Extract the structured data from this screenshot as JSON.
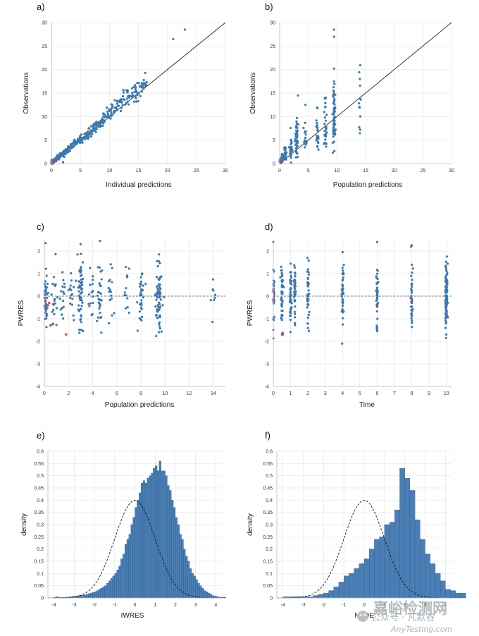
{
  "watermark": {
    "site_cn": "嘉峪检测网",
    "site_en": "AnyTesting.com",
    "wechat_cn": "公众号 · 凡默谷",
    "color": "#9aa3aa"
  },
  "colors": {
    "point": "#3a78b0",
    "bql": "#e02b3c",
    "bar": "#4a7fb5",
    "bar_edge": "#1f4f7f",
    "grid": "#e6e6e6"
  },
  "chart_data": [
    {
      "panel": "a)",
      "type": "scatter",
      "xlabel": "Individual predictions",
      "ylabel": "Observations",
      "xlim": [
        0,
        30
      ],
      "ylim": [
        0,
        30
      ],
      "xticks": [
        "0",
        "5",
        "10",
        "15",
        "20",
        "25",
        "30"
      ],
      "yticks": [
        "0",
        "5",
        "10",
        "15",
        "20",
        "25",
        "30"
      ],
      "identity_line": true,
      "points": "observed vs individual prediction, ~400 obs clustered on identity; outliers at (21,26.5),(23,28.5)",
      "bql_points": [
        [
          0.3,
          0.2
        ],
        [
          0.5,
          0.4
        ],
        [
          2,
          0.3
        ]
      ]
    },
    {
      "panel": "b)",
      "type": "scatter",
      "xlabel": "Population predictions",
      "ylabel": "Observations",
      "xlim": [
        0,
        30
      ],
      "ylim": [
        0,
        30
      ],
      "xticks": [
        "0",
        "5",
        "10",
        "15",
        "20",
        "25",
        "30"
      ],
      "yticks": [
        "0",
        "5",
        "10",
        "15",
        "20",
        "25",
        "30"
      ],
      "identity_line": true,
      "points": "vertical stripes at population predictions 0,0.5,1,2,3,4.5,6.5,8,9.5,14",
      "bql_points": [
        [
          0.2,
          0.2
        ],
        [
          0.4,
          0.3
        ],
        [
          2,
          0.2
        ]
      ]
    },
    {
      "panel": "c)",
      "type": "scatter",
      "xlabel": "Population predictions",
      "ylabel": "PWRES",
      "xlim": [
        0,
        15
      ],
      "ylim": [
        -4,
        2.5
      ],
      "xticks": [
        "0",
        "2",
        "4",
        "6",
        "8",
        "10",
        "12",
        "14"
      ],
      "yticks": [
        "-4",
        "-3",
        "-2",
        "-1",
        "0",
        "1",
        "2"
      ],
      "reference_line_y": 0,
      "bql_points": [
        [
          0.1,
          -0.2
        ],
        [
          0.3,
          -0.4
        ],
        [
          0.4,
          -0.3
        ],
        [
          0.5,
          -1.3
        ],
        [
          1.8,
          -1.7
        ],
        [
          0.2,
          -0.8
        ]
      ]
    },
    {
      "panel": "d)",
      "type": "scatter",
      "xlabel": "Time",
      "ylabel": "PWRES",
      "xlim": [
        0,
        10.3
      ],
      "ylim": [
        -4,
        2.5
      ],
      "xticks": [
        "0",
        "1",
        "2",
        "3",
        "4",
        "5",
        "6",
        "7",
        "8",
        "9",
        "10"
      ],
      "yticks": [
        "-4",
        "-3",
        "-2",
        "-1",
        "0",
        "1",
        "2"
      ],
      "reference_line_y": 0,
      "time_points": [
        0,
        0.5,
        1,
        1.25,
        2,
        4,
        6,
        8,
        10
      ],
      "bql_points": [
        [
          0,
          0.2
        ],
        [
          0,
          -0.2
        ],
        [
          0.5,
          -1.7
        ],
        [
          6,
          -0.4
        ],
        [
          8,
          -0.3
        ]
      ]
    },
    {
      "panel": "e)",
      "type": "bar",
      "xlabel": "IWRES",
      "ylabel": "density",
      "xlim": [
        -4.3,
        4.3
      ],
      "ylim": [
        0,
        0.6
      ],
      "xticks": [
        "-4",
        "-3",
        "-2",
        "-1",
        "0",
        "1",
        "2",
        "3",
        "4"
      ],
      "yticks": [
        "0",
        "0.05",
        "0.1",
        "0.15",
        "0.2",
        "0.25",
        "0.3",
        "0.35",
        "0.4",
        "0.45",
        "0.5",
        "0.55",
        "0.6"
      ],
      "bin_start": -4.0,
      "bin_width": 0.1,
      "values": [
        0.003,
        0.005,
        0.003,
        0.002,
        0.002,
        0.002,
        0.003,
        0.004,
        0.005,
        0.006,
        0.007,
        0.008,
        0.009,
        0.01,
        0.012,
        0.013,
        0.015,
        0.018,
        0.02,
        0.023,
        0.025,
        0.03,
        0.035,
        0.04,
        0.045,
        0.05,
        0.06,
        0.07,
        0.08,
        0.09,
        0.1,
        0.115,
        0.13,
        0.16,
        0.18,
        0.22,
        0.24,
        0.26,
        0.3,
        0.33,
        0.37,
        0.4,
        0.43,
        0.47,
        0.48,
        0.47,
        0.49,
        0.5,
        0.51,
        0.53,
        0.54,
        0.52,
        0.56,
        0.52,
        0.52,
        0.5,
        0.46,
        0.44,
        0.4,
        0.37,
        0.33,
        0.3,
        0.26,
        0.24,
        0.2,
        0.17,
        0.15,
        0.12,
        0.1,
        0.09,
        0.075,
        0.06,
        0.05,
        0.04,
        0.03,
        0.025,
        0.02,
        0.015,
        0.01,
        0.008,
        0.006,
        0.004,
        0.003,
        0.002,
        0.002
      ],
      "density_curve": "standard normal N(0,1), dashed"
    },
    {
      "panel": "f)",
      "type": "bar",
      "xlabel": "NPDE",
      "ylabel": "density",
      "xlim": [
        -4.3,
        4.3
      ],
      "ylim": [
        0,
        0.6
      ],
      "xticks": [
        "-4",
        "-3",
        "-2",
        "-1",
        "0",
        "1",
        "2",
        "3",
        "4"
      ],
      "yticks": [
        "0",
        "0.05",
        "0.1",
        "0.15",
        "0.2",
        "0.25",
        "0.3",
        "0.35",
        "0.4",
        "0.45",
        "0.5",
        "0.55",
        "0.6"
      ],
      "bin_start": -4.0,
      "bin_width": 0.25,
      "values": [
        0.005,
        0.005,
        0.005,
        0.005,
        0.005,
        0.005,
        0.01,
        0.015,
        0.02,
        0.03,
        0.045,
        0.065,
        0.09,
        0.1,
        0.12,
        0.14,
        0.16,
        0.2,
        0.24,
        0.25,
        0.3,
        0.31,
        0.36,
        0.53,
        0.49,
        0.44,
        0.32,
        0.24,
        0.18,
        0.14,
        0.1,
        0.07,
        0.035,
        0.03,
        0.02,
        0.02
      ],
      "density_curve": "standard normal N(0,1), dashed"
    }
  ]
}
